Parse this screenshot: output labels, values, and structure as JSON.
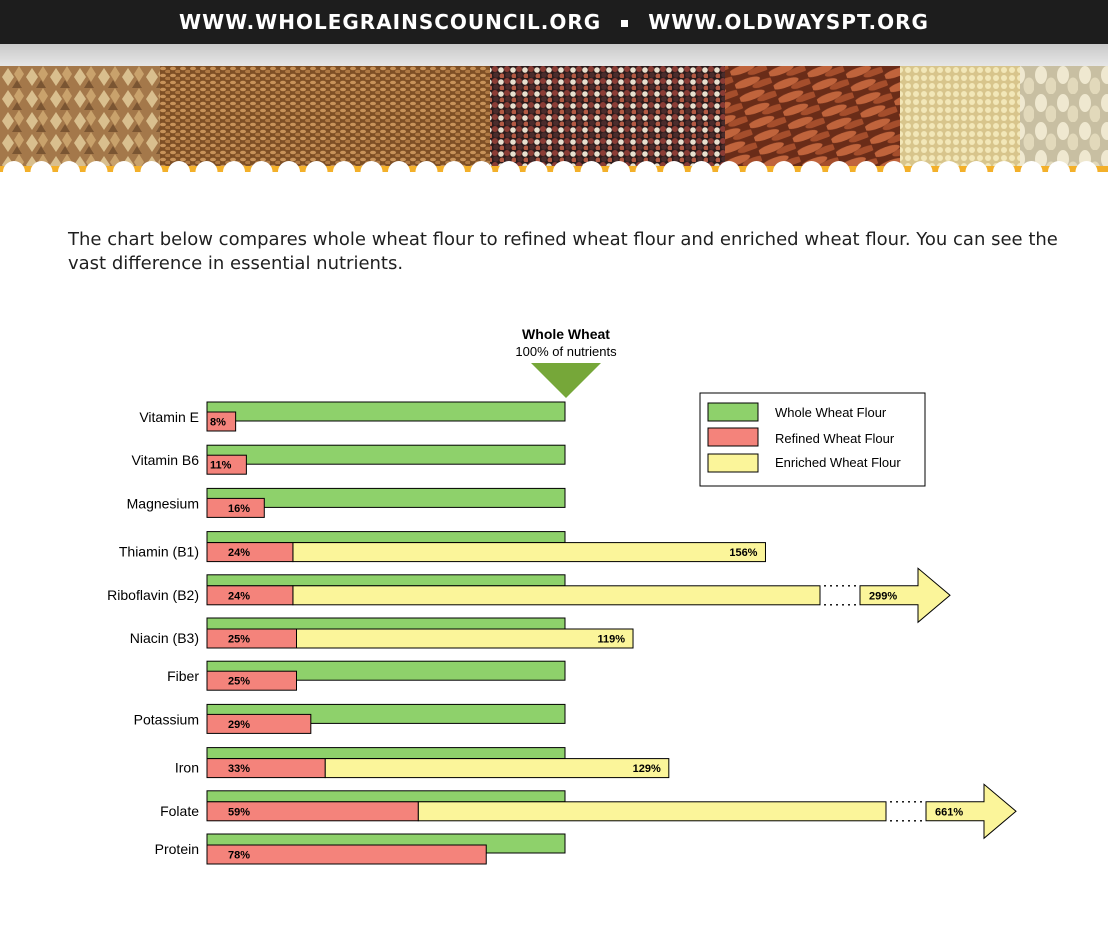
{
  "header": {
    "url_1": "WWW.WHOLEGRAINSCOUNCIL.ORG",
    "url_2": "WWW.OLDWAYSPT.ORG"
  },
  "intro": {
    "text": "The chart below compares whole wheat flour to refined wheat flour and enriched wheat flour. You can see the vast difference in essential nutrients."
  },
  "colors": {
    "header_bg": "#1d1d1d",
    "scallop_orange": "#f3b02a",
    "whole": "#8ed16b",
    "refined": "#f4837b",
    "enriched": "#fbf59a",
    "marker": "#76a739"
  },
  "banner": {
    "icons": [
      "buckwheat-grains",
      "wheat-berries",
      "quinoa-mix",
      "red-rice",
      "millet",
      "barley"
    ]
  },
  "chart_data": {
    "type": "bar",
    "reference": {
      "title": "Whole Wheat",
      "subtitle": "100% of nutrients",
      "value": 100
    },
    "categories": [
      "Vitamin E",
      "Vitamin B6",
      "Magnesium",
      "Thiamin (B1)",
      "Riboflavin (B2)",
      "Niacin (B3)",
      "Fiber",
      "Potassium",
      "Iron",
      "Folate",
      "Protein"
    ],
    "series": [
      {
        "name": "Whole Wheat Flour",
        "values": [
          100,
          100,
          100,
          100,
          100,
          100,
          100,
          100,
          100,
          100,
          100
        ]
      },
      {
        "name": "Refined Wheat Flour",
        "values": [
          8,
          11,
          16,
          24,
          24,
          25,
          25,
          29,
          33,
          59,
          78
        ],
        "labels": [
          "8%",
          "11%",
          "16%",
          "24%",
          "24%",
          "25%",
          "25%",
          "29%",
          "33%",
          "59%",
          "78%"
        ]
      },
      {
        "name": "Enriched Wheat Flour",
        "values": [
          null,
          null,
          null,
          156,
          299,
          119,
          null,
          null,
          129,
          661,
          null
        ],
        "labels": [
          null,
          null,
          null,
          "156%",
          "299%",
          "119%",
          null,
          null,
          "129%",
          "661%",
          null
        ]
      }
    ],
    "legend": [
      "Whole Wheat Flour",
      "Refined Wheat Flour",
      "Enriched Wheat Flour"
    ],
    "legend_position": "top-right",
    "truncated": [
      "Riboflavin (B2)",
      "Folate"
    ]
  }
}
